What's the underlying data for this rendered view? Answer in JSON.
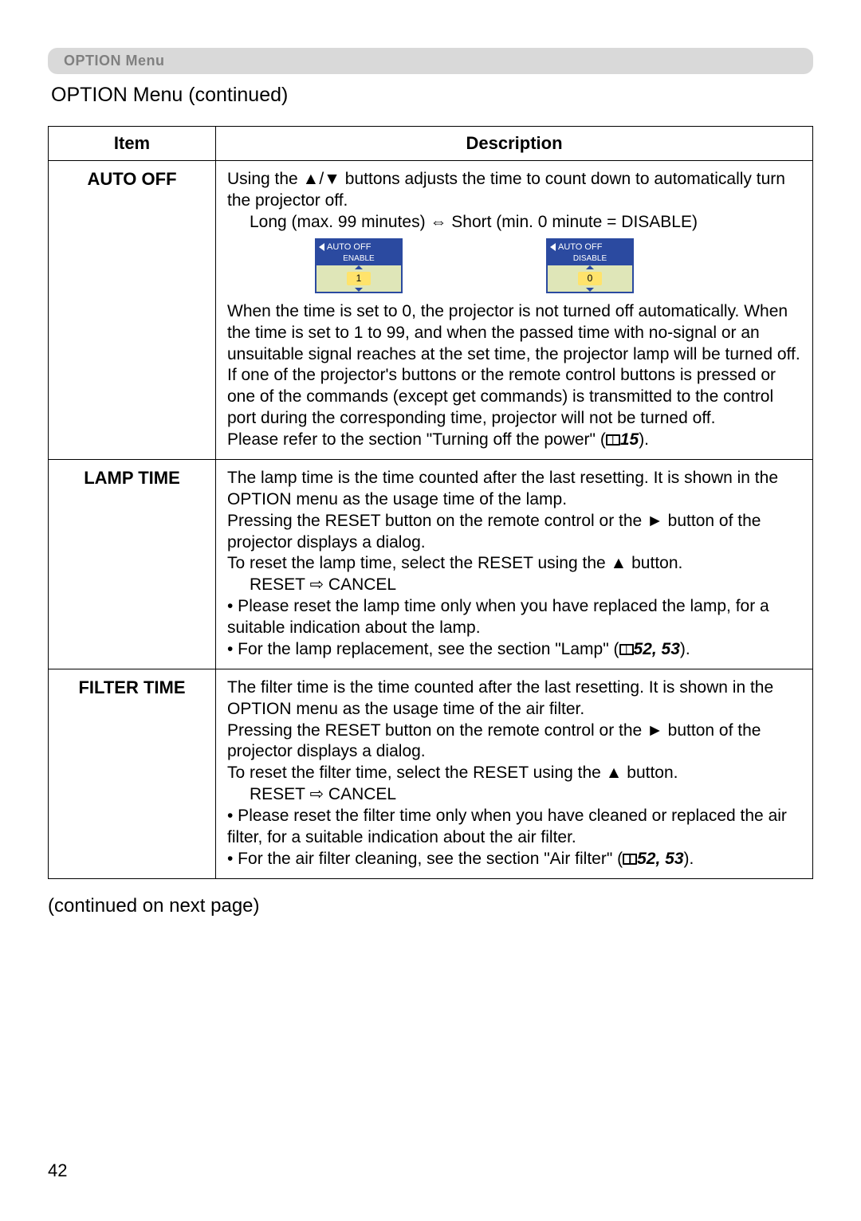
{
  "menu_bar": {
    "label": "OPTION Menu"
  },
  "section_title": "OPTION Menu (continued)",
  "table": {
    "headers": {
      "item": "Item",
      "description": "Description"
    },
    "rows": [
      {
        "item": "AUTO OFF",
        "p1a": "Using the ▲/▼ buttons adjusts the time to count down to automatically turn the projector off.",
        "p1b": "Long (max. 99 minutes) ⇔ Short (min. 0 minute = DISABLE)",
        "mini1": {
          "title": "AUTO OFF",
          "mode": "ENABLE",
          "value": "1"
        },
        "mini2": {
          "title": "AUTO OFF",
          "mode": "DISABLE",
          "value": "0"
        },
        "p2": "When the time is set to 0, the projector is not turned off automatically. When the time is set to 1 to 99, and when the passed time with no-signal or an unsuitable signal reaches at the set time, the projector lamp will be turned off.",
        "p3": "If one of the projector's buttons or the remote control buttons is pressed or one of the commands (except get commands) is transmitted to the control port during the corresponding time, projector will not be turned off.",
        "p4a": "Please refer to the section \"Turning off the power\" (",
        "p4b": "15",
        "p4c": ")."
      },
      {
        "item": "LAMP TIME",
        "p1": "The lamp time is the time counted after the last resetting. It is shown in the OPTION menu as the usage time of the lamp.",
        "p2": "Pressing the RESET button on the remote control or the ► button of the projector displays a dialog.",
        "p3": "To reset the lamp time, select the RESET using the ▲ button.",
        "p3b": "RESET ⇨ CANCEL",
        "p4": "• Please reset the lamp time only when you have replaced the lamp, for a suitable indication about the lamp.",
        "p5a": "• For the lamp replacement, see the section \"Lamp\" (",
        "p5b": "52, 53",
        "p5c": ")."
      },
      {
        "item": "FILTER TIME",
        "p1": "The filter time is the time counted after the last resetting. It is shown in the OPTION menu as the usage time of the air filter.",
        "p2": "Pressing the RESET button on the remote control or the ► button of the projector displays a dialog.",
        "p3": "To reset the filter time, select the RESET using the ▲ button.",
        "p3b": "RESET ⇨ CANCEL",
        "p4": "• Please reset the filter time only when you have cleaned or replaced the air filter, for a suitable indication about the air filter.",
        "p5a": "• For the air filter cleaning, see the section \"Air filter\" (",
        "p5b": "52, 53",
        "p5c": ")."
      }
    ]
  },
  "continued": "(continued on next page)",
  "page_number": "42"
}
